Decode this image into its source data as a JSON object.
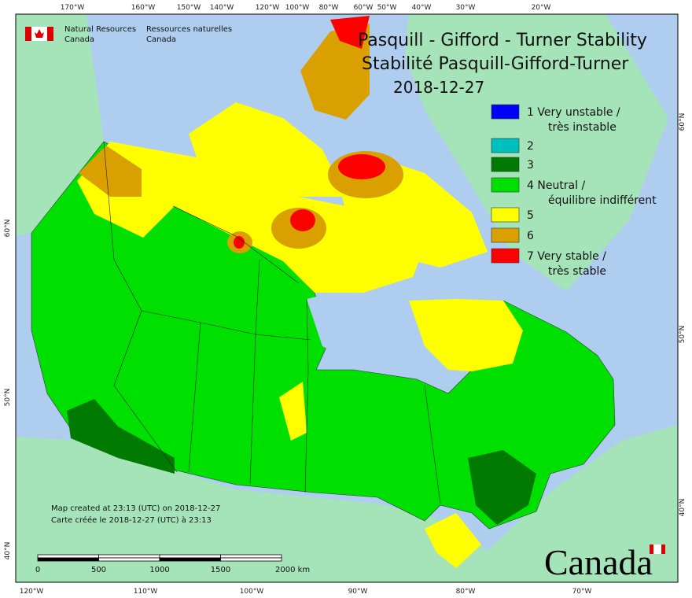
{
  "header": {
    "title_en": "Pasquill - Gifford - Turner Stability",
    "title_fr": "Stabilité Pasquill-Gifford-Turner",
    "date": "2018-12-27"
  },
  "agency": {
    "en": [
      "Natural Resources",
      "Canada"
    ],
    "fr": [
      "Ressources naturelles",
      "Canada"
    ]
  },
  "legend": [
    {
      "label": [
        "1 Very unstable /",
        "très instable"
      ],
      "color": "#0000ff"
    },
    {
      "label": [
        "2"
      ],
      "color": "#00bfbf"
    },
    {
      "label": [
        "3"
      ],
      "color": "#007a00"
    },
    {
      "label": [
        "4 Neutral /",
        "équilibre indifférent"
      ],
      "color": "#00e000"
    },
    {
      "label": [
        "5"
      ],
      "color": "#ffff00"
    },
    {
      "label": [
        "6"
      ],
      "color": "#d9a000"
    },
    {
      "label": [
        "7 Very stable /",
        "très stable"
      ],
      "color": "#ff0000"
    }
  ],
  "graticule": {
    "top": [
      "170°W",
      "160°W",
      "150°W",
      "140°W",
      "120°W",
      "100°W",
      "80°W",
      "60°W",
      "50°W",
      "40°W",
      "30°W",
      "20°W"
    ],
    "bottom": [
      "120°W",
      "110°W",
      "100°W",
      "90°W",
      "80°W",
      "70°W"
    ],
    "left": [
      "60°N",
      "50°N",
      "40°N"
    ],
    "right": [
      "60°N",
      "50°N",
      "40°N"
    ]
  },
  "scale_bar": [
    "0",
    "500",
    "1000",
    "1500",
    "2000  km"
  ],
  "footer": {
    "created_en": "Map created at 23:13 (UTC) on 2018-12-27",
    "created_fr": "Carte créée le 2018-12-27 (UTC) à 23:13"
  },
  "wordmark": "Canada"
}
